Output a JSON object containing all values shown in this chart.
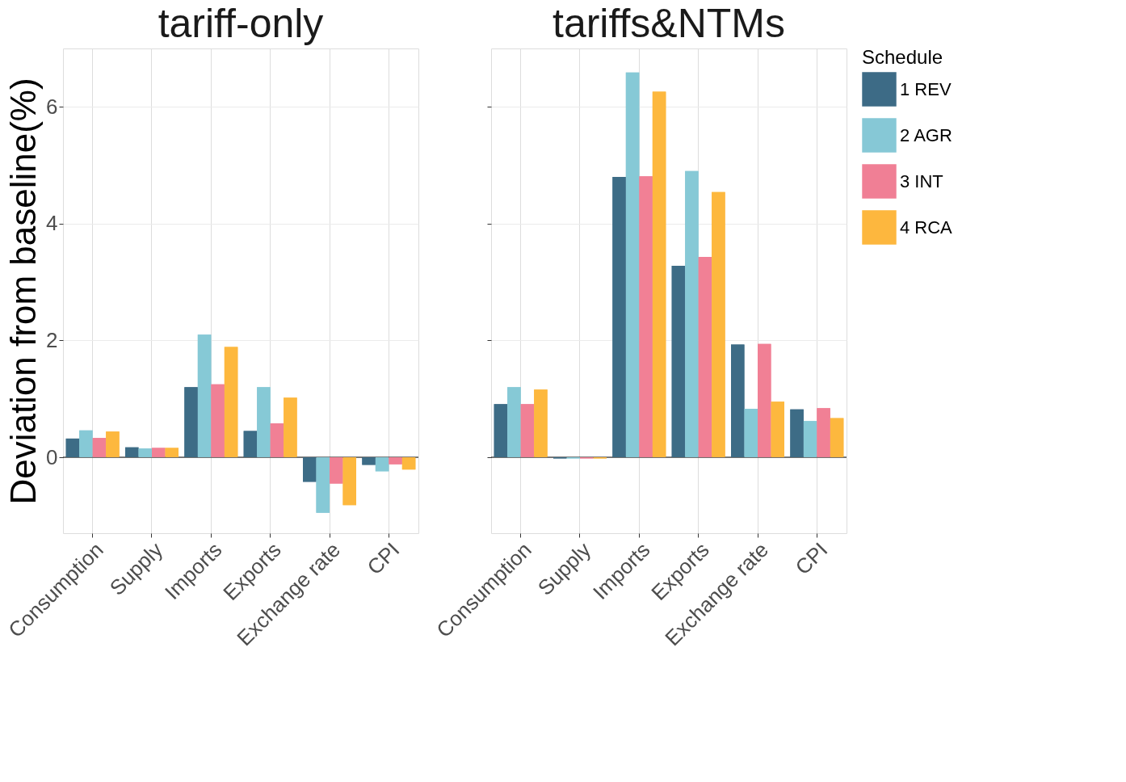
{
  "chart_data": [
    {
      "type": "bar",
      "title": "tariff-only",
      "ylabel": "Deviation from baseline(%)",
      "legend_title": "Schedule",
      "categories": [
        "Consumption",
        "Supply",
        "Imports",
        "Exports",
        "Exchange rate",
        "CPI"
      ],
      "series": [
        {
          "name": "1 REV",
          "color": "#3d6b86",
          "values": [
            0.32,
            0.17,
            1.2,
            0.45,
            -0.42,
            -0.13
          ]
        },
        {
          "name": "2 AGR",
          "color": "#86c8d6",
          "values": [
            0.46,
            0.15,
            2.1,
            1.2,
            -0.95,
            -0.24
          ]
        },
        {
          "name": "3 INT",
          "color": "#f07f95",
          "values": [
            0.33,
            0.16,
            1.25,
            0.58,
            -0.45,
            -0.12
          ]
        },
        {
          "name": "4 RCA",
          "color": "#fdb73e",
          "values": [
            0.44,
            0.16,
            1.89,
            1.02,
            -0.82,
            -0.21
          ]
        }
      ],
      "ylim": [
        -1.3,
        7.0
      ],
      "yticks": [
        0,
        2,
        4,
        6
      ],
      "grid": true,
      "legend": "right",
      "ref_lines": [
        {
          "axis": "y",
          "value": 0,
          "color": "#000000"
        }
      ]
    },
    {
      "type": "bar",
      "title": "tariffs&NTMs",
      "categories": [
        "Consumption",
        "Supply",
        "Imports",
        "Exports",
        "Exchange rate",
        "CPI"
      ],
      "series": [
        {
          "name": "1 REV",
          "color": "#3d6b86",
          "values": [
            0.91,
            -0.02,
            4.8,
            3.28,
            1.93,
            0.82
          ]
        },
        {
          "name": "2 AGR",
          "color": "#86c8d6",
          "values": [
            1.2,
            -0.02,
            6.59,
            4.9,
            0.83,
            0.62
          ]
        },
        {
          "name": "3 INT",
          "color": "#f07f95",
          "values": [
            0.91,
            -0.02,
            4.81,
            3.43,
            1.94,
            0.84
          ]
        },
        {
          "name": "4 RCA",
          "color": "#fdb73e",
          "values": [
            1.16,
            -0.02,
            6.26,
            4.54,
            0.95,
            0.67
          ]
        }
      ],
      "ylim": [
        -1.3,
        7.0
      ],
      "yticks": [
        0,
        2,
        4,
        6
      ],
      "grid": true,
      "legend": "right",
      "tick_labels": "x",
      "ref_lines": [
        {
          "axis": "y",
          "value": 0,
          "color": "#000000"
        }
      ]
    }
  ]
}
